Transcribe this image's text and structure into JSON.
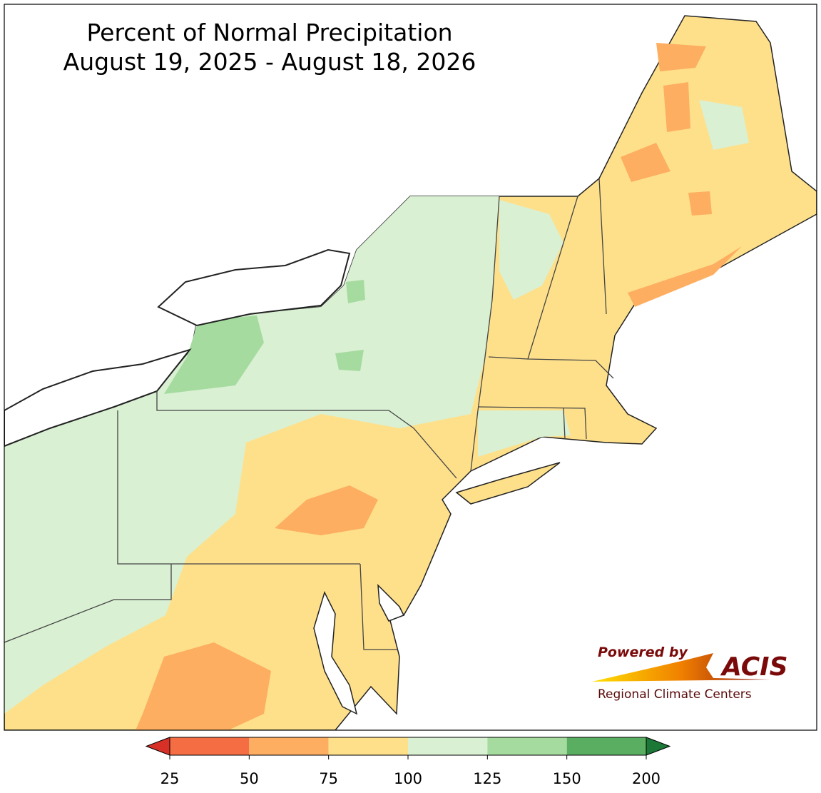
{
  "title": [
    "Percent of Normal Precipitation",
    "August 19, 2025 - August 18, 2026"
  ],
  "colorbar": {
    "ticks": [
      25,
      50,
      75,
      100,
      125,
      150,
      200
    ],
    "colors": [
      "#d73027",
      "#f46d43",
      "#fdae61",
      "#fee08b",
      "#d9f0d3",
      "#a6dba0",
      "#5aae61",
      "#1b7837"
    ],
    "extend": "both"
  },
  "logo": {
    "powered_by": "Powered by",
    "name": "ACIS",
    "subtitle": "Regional Climate Centers"
  }
}
